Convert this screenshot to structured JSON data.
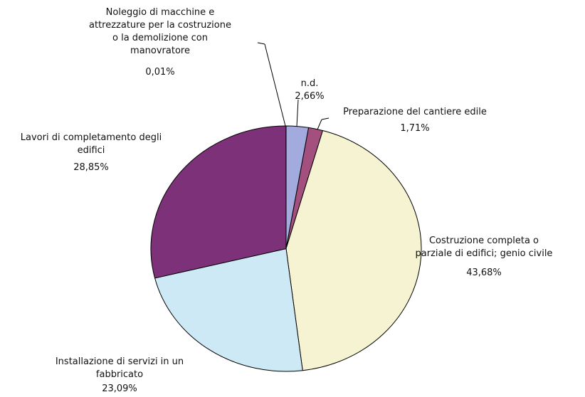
{
  "chart_data": {
    "type": "pie",
    "categories": [
      "n.d.",
      "Preparazione del cantiere edile",
      "Costruzione completa o\nparziale di edifici; genio civile",
      "Installazione di servizi in un\nfabbricato",
      "Lavori di completamento degli\nedifici",
      "Noleggio di macchine e\nattrezzature per la costruzione\no la demolizione con\nmanovratore"
    ],
    "values": [
      2.66,
      1.71,
      43.68,
      23.09,
      28.85,
      0.01
    ],
    "value_labels": [
      "2,66%",
      "1,71%",
      "43,68%",
      "23,09%",
      "28,85%",
      "0,01%"
    ],
    "colors": [
      "#a3aade",
      "#a4507f",
      "#f5f3d1",
      "#cde9f5",
      "#7c3178",
      "#ffffff"
    ]
  }
}
